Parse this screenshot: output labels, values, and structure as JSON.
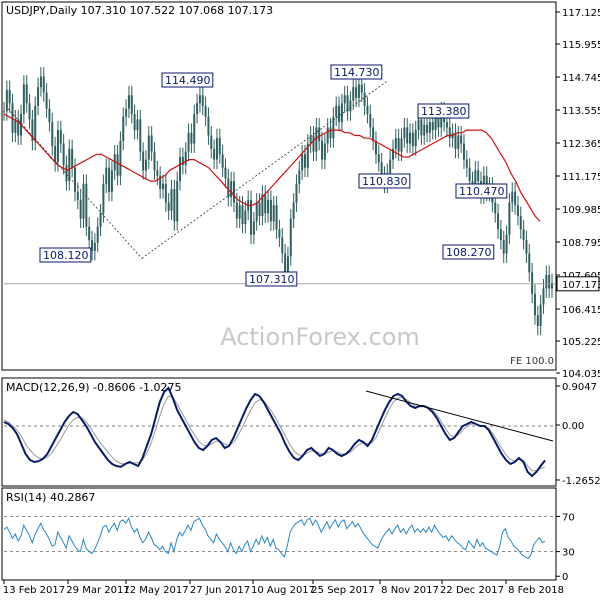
{
  "chart_data": {
    "type": "line",
    "panels": [
      {
        "id": "price",
        "header": "USDJPY,Daily  107.310 107.522 107.068 107.173",
        "instrument": "USDJPY",
        "timeframe": "Daily",
        "ohlc": {
          "open": 107.31,
          "high": 107.522,
          "low": 107.068,
          "close": 107.173
        },
        "ylim": [
          104.035,
          117.6
        ],
        "y_ticks": [
          "117.125",
          "115.955",
          "114.745",
          "113.555",
          "112.365",
          "111.175",
          "109.985",
          "108.795",
          "107.605",
          "106.415",
          "105.225",
          "104.035"
        ],
        "current_price_label": "107.173",
        "fe_label": "FE 100.0",
        "watermark": "ActionForex.com",
        "annotations": [
          {
            "label": "108.120",
            "x": 26,
            "y": 108.12
          },
          {
            "label": "114.490",
            "x": 70,
            "y": 114.49
          },
          {
            "label": "107.310",
            "x": 104,
            "y": 107.31
          },
          {
            "label": "114.730",
            "x": 135,
            "y": 114.73
          },
          {
            "label": "110.830",
            "x": 148,
            "y": 110.83
          },
          {
            "label": "113.380",
            "x": 159,
            "y": 113.38
          },
          {
            "label": "110.470",
            "x": 179,
            "y": 110.47
          },
          {
            "label": "108.270",
            "x": 182,
            "y": 108.27
          }
        ],
        "series": [
          {
            "kind": "price",
            "values": [
              113.6,
              114.4,
              113.9,
              112.8,
              113.3,
              112.7,
              113.5,
              114.6,
              113.9,
              113.3,
              112.5,
              113.8,
              114.5,
              114.9,
              114.3,
              113.7,
              113.2,
              112.3,
              111.7,
              112.9,
              112.4,
              111.6,
              111.0,
              112.2,
              111.5,
              110.6,
              110.3,
              109.6,
              110.9,
              109.3,
              108.8,
              108.4,
              108.7,
              109.3,
              109.8,
              110.9,
              111.5,
              110.6,
              111.4,
              112.0,
              111.2,
              112.5,
              113.4,
              113.7,
              114.2,
              113.5,
              112.9,
              113.3,
              112.1,
              111.4,
              111.8,
              112.7,
              112.1,
              111.4,
              111.2,
              110.7,
              110.9,
              110.2,
              109.9,
              110.7,
              109.5,
              111.0,
              111.9,
              111.6,
              112.1,
              112.8,
              112.4,
              113.5,
              113.9,
              114.2,
              113.8,
              113.4,
              112.7,
              112.2,
              111.8,
              112.6,
              112.0,
              111.5,
              111.1,
              110.4,
              111.0,
              110.2,
              109.6,
              110.1,
              109.4,
              109.9,
              110.3,
              109.0,
              109.5,
              110.2,
              109.7,
              110.5,
              109.8,
              110.3,
              109.5,
              110.1,
              109.2,
              108.9,
              108.3,
              107.6,
              108.2,
              109.6,
              110.2,
              110.9,
              111.4,
              112.0,
              111.5,
              112.4,
              112.7,
              112.1,
              113.0,
              112.5,
              111.8,
              112.4,
              113.0,
              112.6,
              113.4,
              113.8,
              113.2,
              113.9,
              114.2,
              113.6,
              114.0,
              114.5,
              114.1,
              114.6,
              114.3,
              113.8,
              113.5,
              113.0,
              112.5,
              112.0,
              111.7,
              111.2,
              110.9,
              111.3,
              111.8,
              112.2,
              112.6,
              112.1,
              112.6,
              113.0,
              112.4,
              112.8,
              112.3,
              112.9,
              113.3,
              112.7,
              113.1,
              112.8,
              113.2,
              112.9,
              113.4,
              113.0,
              113.6,
              113.2,
              113.0,
              112.6,
              112.8,
              112.2,
              112.7,
              112.4,
              111.8,
              111.5,
              111.0,
              110.8,
              111.4,
              111.0,
              110.5,
              111.2,
              110.6,
              110.8,
              110.2,
              109.8,
              109.2,
              108.8,
              108.3,
              109.0,
              110.2,
              110.6,
              110.1,
              109.7,
              109.2,
              108.8,
              108.3,
              107.6,
              106.8,
              106.0,
              105.6,
              106.4,
              107.0,
              107.5,
              107.0,
              107.2
            ]
          },
          {
            "kind": "moving-average",
            "values": [
              113.5,
              113.4,
              113.3,
              113.2,
              113.0,
              112.8,
              112.6,
              112.4,
              112.2,
              112.0,
              111.8,
              111.6,
              111.5,
              111.4,
              111.5,
              111.6,
              111.7,
              111.8,
              111.9,
              112.0,
              112.0,
              111.9,
              111.8,
              111.7,
              111.6,
              111.5,
              111.4,
              111.3,
              111.2,
              111.1,
              111.0,
              111.0,
              111.1,
              111.2,
              111.4,
              111.5,
              111.6,
              111.7,
              111.8,
              111.8,
              111.7,
              111.6,
              111.5,
              111.3,
              111.1,
              110.9,
              110.7,
              110.5,
              110.3,
              110.2,
              110.1,
              110.1,
              110.2,
              110.4,
              110.6,
              110.8,
              111.0,
              111.2,
              111.4,
              111.6,
              111.8,
              112.0,
              112.2,
              112.4,
              112.6,
              112.7,
              112.8,
              112.9,
              112.9,
              112.9,
              112.8,
              112.8,
              112.7,
              112.7,
              112.6,
              112.6,
              112.5,
              112.4,
              112.3,
              112.2,
              112.1,
              112.0,
              111.9,
              111.9,
              112.0,
              112.1,
              112.2,
              112.3,
              112.4,
              112.5,
              112.6,
              112.7,
              112.7,
              112.8,
              112.8,
              112.9,
              112.9,
              112.9,
              112.9,
              112.8,
              112.6,
              112.3,
              112.0,
              111.7,
              111.3,
              111.0,
              110.6,
              110.3,
              110.0,
              109.7,
              109.5
            ]
          }
        ],
        "trendlines": [
          "dotted-from-114.49-down-to-108.12",
          "dotted-from-108.12-up-to-114.73",
          "horizontal-current-price"
        ]
      },
      {
        "id": "macd",
        "header": "MACD(12,26,9) -0.8606 -1.0275",
        "params": "12,26,9",
        "main": -0.8606,
        "signal": -1.0275,
        "ylim": [
          -1.45,
          1.05
        ],
        "y_ticks": [
          "0.9047",
          "0.00",
          "-1.2652"
        ],
        "series": [
          {
            "kind": "macd",
            "values": [
              0.1,
              0.05,
              -0.05,
              -0.2,
              -0.45,
              -0.7,
              -0.85,
              -0.9,
              -0.88,
              -0.82,
              -0.7,
              -0.5,
              -0.3,
              -0.1,
              0.1,
              0.25,
              0.35,
              0.3,
              0.15,
              0.0,
              -0.2,
              -0.4,
              -0.55,
              -0.7,
              -0.85,
              -0.95,
              -1.0,
              -1.02,
              -0.95,
              -0.9,
              -0.95,
              -1.0,
              -0.8,
              -0.5,
              -0.2,
              0.2,
              0.6,
              0.85,
              0.95,
              0.7,
              0.4,
              0.2,
              0.0,
              -0.2,
              -0.4,
              -0.55,
              -0.6,
              -0.5,
              -0.35,
              -0.3,
              -0.4,
              -0.55,
              -0.5,
              -0.3,
              -0.05,
              0.2,
              0.45,
              0.65,
              0.8,
              0.75,
              0.6,
              0.4,
              0.2,
              0.0,
              -0.2,
              -0.45,
              -0.65,
              -0.8,
              -0.85,
              -0.75,
              -0.6,
              -0.55,
              -0.65,
              -0.75,
              -0.7,
              -0.55,
              -0.6,
              -0.7,
              -0.75,
              -0.7,
              -0.6,
              -0.45,
              -0.35,
              -0.4,
              -0.5,
              -0.35,
              -0.1,
              0.15,
              0.4,
              0.6,
              0.75,
              0.8,
              0.75,
              0.6,
              0.5,
              0.45,
              0.5,
              0.5,
              0.45,
              0.35,
              0.2,
              0.0,
              -0.2,
              -0.35,
              -0.3,
              -0.15,
              0.0,
              0.05,
              0.1,
              0.05,
              0.0,
              0.0,
              -0.1,
              -0.3,
              -0.5,
              -0.7,
              -0.85,
              -0.95,
              -0.9,
              -0.8,
              -0.9,
              -1.15,
              -1.25,
              -1.15,
              -1.0,
              -0.86
            ]
          },
          {
            "kind": "signal",
            "values": [
              0.15,
              0.1,
              0.0,
              -0.1,
              -0.25,
              -0.45,
              -0.6,
              -0.72,
              -0.8,
              -0.82,
              -0.78,
              -0.68,
              -0.52,
              -0.35,
              -0.15,
              0.02,
              0.15,
              0.22,
              0.2,
              0.1,
              -0.05,
              -0.22,
              -0.38,
              -0.52,
              -0.65,
              -0.78,
              -0.88,
              -0.94,
              -0.95,
              -0.93,
              -0.92,
              -0.92,
              -0.85,
              -0.68,
              -0.42,
              -0.1,
              0.25,
              0.55,
              0.75,
              0.72,
              0.55,
              0.35,
              0.15,
              -0.05,
              -0.22,
              -0.38,
              -0.48,
              -0.5,
              -0.45,
              -0.38,
              -0.38,
              -0.45,
              -0.48,
              -0.42,
              -0.25,
              -0.05,
              0.18,
              0.4,
              0.58,
              0.66,
              0.62,
              0.5,
              0.34,
              0.15,
              -0.05,
              -0.25,
              -0.45,
              -0.62,
              -0.72,
              -0.74,
              -0.68,
              -0.62,
              -0.63,
              -0.68,
              -0.7,
              -0.65,
              -0.62,
              -0.65,
              -0.7,
              -0.7,
              -0.66,
              -0.56,
              -0.46,
              -0.42,
              -0.45,
              -0.42,
              -0.28,
              -0.05,
              0.2,
              0.42,
              0.6,
              0.7,
              0.72,
              0.66,
              0.58,
              0.5,
              0.48,
              0.48,
              0.46,
              0.4,
              0.28,
              0.12,
              -0.06,
              -0.22,
              -0.28,
              -0.22,
              -0.1,
              0.0,
              0.05,
              0.05,
              0.02,
              0.0,
              -0.06,
              -0.2,
              -0.38,
              -0.56,
              -0.72,
              -0.84,
              -0.87,
              -0.84,
              -0.86,
              -1.0,
              -1.12,
              -1.12,
              -1.06,
              -1.03
            ]
          }
        ],
        "trendline": "descending-dark-line"
      },
      {
        "id": "rsi",
        "header": "RSI(14) 40.2867",
        "params": "14",
        "current": 40.2867,
        "ylim": [
          0,
          100
        ],
        "y_ticks": [
          "70",
          "30",
          "0"
        ],
        "series": [
          {
            "kind": "rsi",
            "values": [
              55,
              58,
              52,
              45,
              50,
              42,
              48,
              60,
              54,
              48,
              40,
              50,
              56,
              62,
              55,
              50,
              44,
              36,
              38,
              52,
              46,
              40,
              34,
              48,
              42,
              36,
              32,
              30,
              44,
              34,
              30,
              28,
              32,
              40,
              48,
              58,
              60,
              52,
              58,
              62,
              54,
              64,
              66,
              62,
              68,
              58,
              52,
              56,
              46,
              40,
              44,
              52,
              46,
              38,
              36,
              32,
              36,
              30,
              28,
              40,
              30,
              44,
              52,
              48,
              54,
              60,
              54,
              64,
              66,
              68,
              60,
              56,
              48,
              44,
              40,
              50,
              44,
              40,
              36,
              30,
              40,
              32,
              28,
              36,
              30,
              38,
              42,
              30,
              36,
              44,
              38,
              48,
              40,
              46,
              36,
              44,
              34,
              32,
              28,
              24,
              36,
              52,
              58,
              62,
              64,
              66,
              60,
              66,
              68,
              60,
              66,
              60,
              52,
              58,
              64,
              56,
              62,
              66,
              58,
              64,
              66,
              56,
              60,
              64,
              58,
              62,
              56,
              50,
              46,
              42,
              38,
              36,
              34,
              42,
              48,
              52,
              56,
              50,
              56,
              60,
              52,
              56,
              50,
              56,
              60,
              52,
              56,
              52,
              56,
              52,
              58,
              52,
              60,
              54,
              50,
              46,
              48,
              42,
              48,
              44,
              40,
              38,
              34,
              32,
              42,
              38,
              34,
              44,
              36,
              40,
              34,
              32,
              30,
              28,
              26,
              36,
              52,
              56,
              46,
              42,
              36,
              34,
              30,
              26,
              24,
              22,
              26,
              38,
              42,
              46,
              40,
              42
            ]
          }
        ]
      }
    ],
    "x_ticks": [
      "13 Feb 2017",
      "29 Mar 2017",
      "12 May 2017",
      "27 Jun 2017",
      "10 Aug 2017",
      "25 Sep 2017",
      "8 Nov 2017",
      "22 Dec 2017",
      "8 Feb 2018"
    ],
    "colors": {
      "candle": "#2f5f5f",
      "moving_average": "#d01010",
      "macd": "#0a1a6b",
      "signal": "#9a9a9a",
      "rsi": "#2a86c8",
      "label_border": "#0a1a6b",
      "label_text": "#0a1a6b",
      "trendline": "#000000",
      "grid": "#888888",
      "watermark": "#c8c8c8"
    }
  }
}
